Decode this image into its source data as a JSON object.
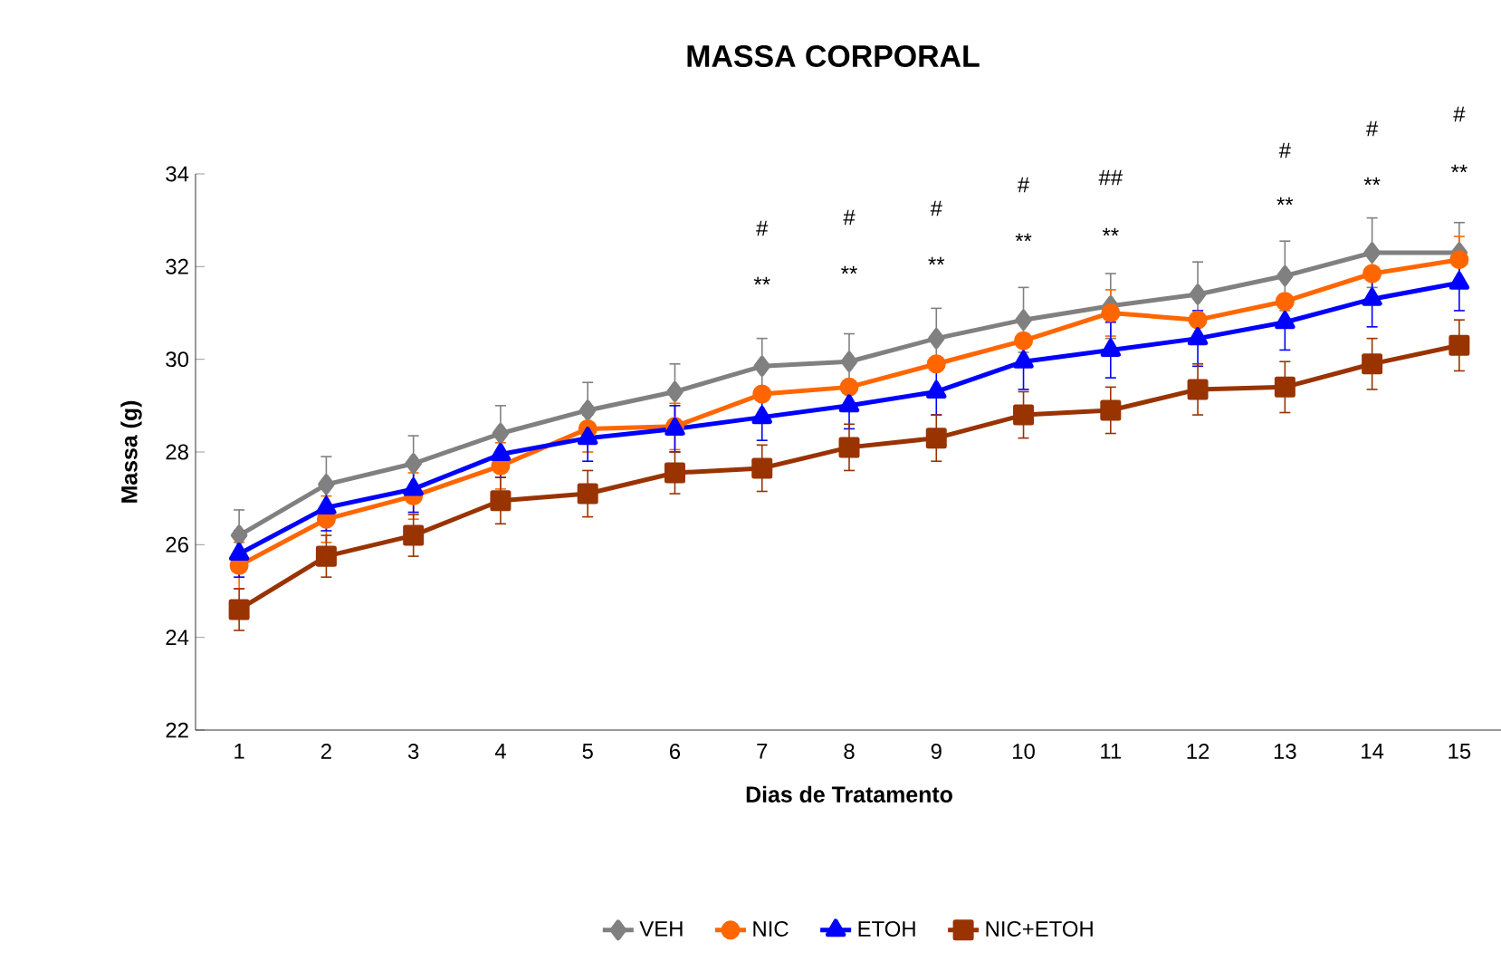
{
  "chart_data": {
    "type": "line",
    "title": "MASSA CORPORAL",
    "xlabel": "Dias de Tratamento",
    "ylabel": "Massa (g)",
    "categories": [
      "1",
      "2",
      "3",
      "4",
      "5",
      "6",
      "7",
      "8",
      "9",
      "10",
      "11",
      "12",
      "13",
      "14",
      "15"
    ],
    "ylim": [
      22,
      34
    ],
    "yticks": [
      22,
      24,
      26,
      28,
      30,
      32,
      34
    ],
    "grid": false,
    "legend": "bottom",
    "series": [
      {
        "name": "VEH",
        "color": "#808080",
        "marker": "diamond",
        "values": [
          26.2,
          27.3,
          27.75,
          28.4,
          28.9,
          29.3,
          29.85,
          29.95,
          30.45,
          30.85,
          31.15,
          31.4,
          31.8,
          32.3,
          32.3
        ],
        "errors": [
          0.55,
          0.6,
          0.6,
          0.6,
          0.6,
          0.6,
          0.6,
          0.6,
          0.65,
          0.7,
          0.7,
          0.7,
          0.75,
          0.75,
          0.65
        ]
      },
      {
        "name": "NIC",
        "color": "#ff6600",
        "marker": "circle",
        "values": [
          25.55,
          26.55,
          27.05,
          27.7,
          28.5,
          28.55,
          29.25,
          29.4,
          29.9,
          30.4,
          31.0,
          30.85,
          31.25,
          31.85,
          32.15
        ],
        "errors": [
          0.5,
          0.5,
          0.5,
          0.5,
          0.5,
          0.5,
          null,
          null,
          null,
          null,
          0.5,
          null,
          null,
          null,
          0.5
        ]
      },
      {
        "name": "ETOH",
        "color": "#0000ff",
        "marker": "triangle",
        "values": [
          25.8,
          26.8,
          27.2,
          27.95,
          28.3,
          28.5,
          28.75,
          29.0,
          29.3,
          29.95,
          30.2,
          30.45,
          30.8,
          31.3,
          31.65
        ],
        "errors": [
          0.5,
          0.5,
          0.5,
          0.5,
          0.5,
          0.5,
          0.5,
          0.5,
          0.5,
          0.6,
          0.6,
          0.6,
          0.6,
          0.6,
          0.6
        ]
      },
      {
        "name": "NIC+ETOH",
        "color": "#993300",
        "marker": "square",
        "values": [
          24.6,
          25.75,
          26.2,
          26.95,
          27.1,
          27.55,
          27.65,
          28.1,
          28.3,
          28.8,
          28.9,
          29.35,
          29.4,
          29.9,
          30.3
        ],
        "errors": [
          0.45,
          0.45,
          0.45,
          0.5,
          0.5,
          0.45,
          0.5,
          0.5,
          0.5,
          0.5,
          0.5,
          0.55,
          0.55,
          0.55,
          0.55
        ]
      }
    ],
    "annotations": [
      "**",
      "#",
      "**",
      "#",
      "**",
      "#",
      "**",
      "#",
      "**",
      "##",
      "**",
      "#",
      "**",
      "#",
      "**",
      "#"
    ]
  }
}
